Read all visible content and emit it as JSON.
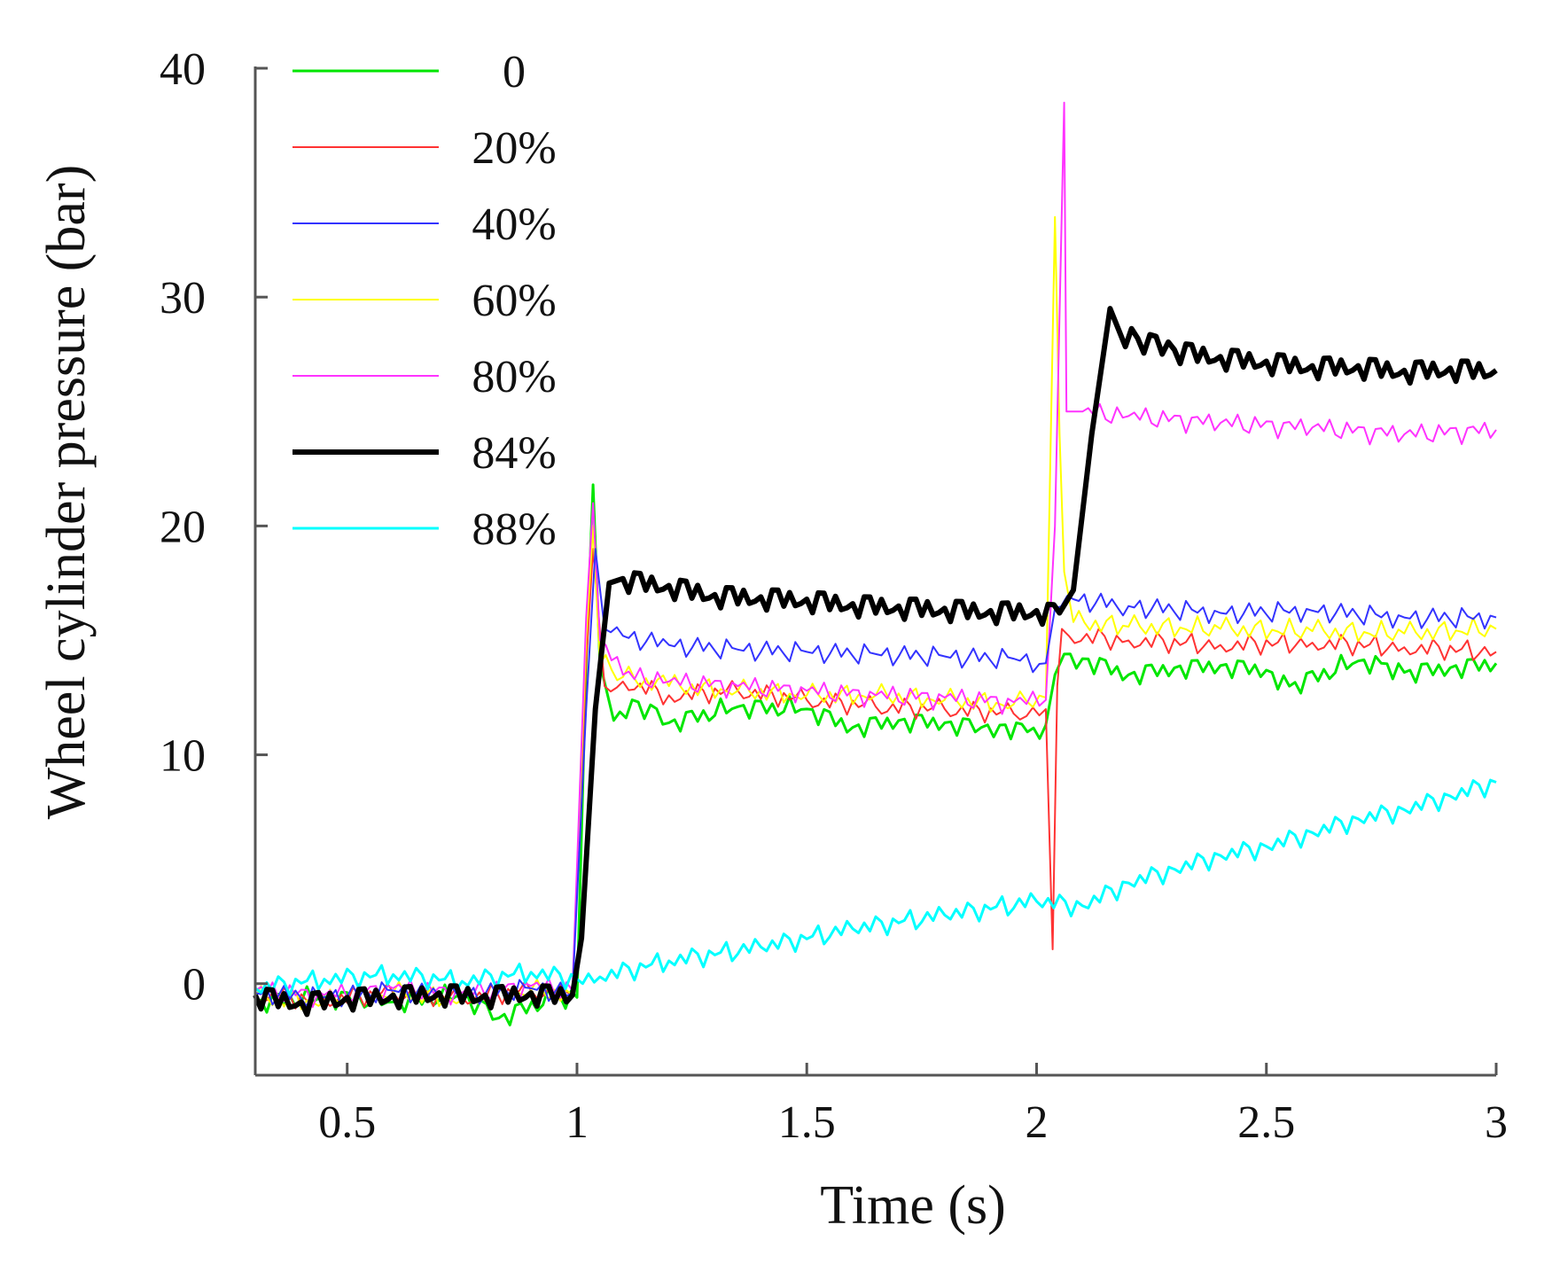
{
  "chart_data": {
    "type": "line",
    "title": "",
    "xlabel": "Time (s)",
    "ylabel": "Wheel cylinder pressure (bar)",
    "xlim": [
      0.3,
      3.0
    ],
    "ylim": [
      -4,
      40
    ],
    "xticks": [
      0.5,
      1,
      1.5,
      2,
      2.5,
      3
    ],
    "xtick_labels": [
      "0.5",
      "1",
      "1.5",
      "2",
      "2.5",
      "3"
    ],
    "yticks": [
      0,
      10,
      20,
      30,
      40
    ],
    "ytick_labels": [
      "0",
      "10",
      "20",
      "30",
      "40"
    ],
    "grid": false,
    "legend_position": "top-left",
    "series": [
      {
        "name": "0",
        "color": "#00e600",
        "stroke": 3,
        "x": [
          0.3,
          0.45,
          0.6,
          0.75,
          0.83,
          0.95,
          1.0,
          1.02,
          1.035,
          1.05,
          1.08,
          1.12,
          1.2,
          1.35,
          1.5,
          1.6,
          1.7,
          1.8,
          1.88,
          1.92,
          1.98,
          2.02,
          2.04,
          2.06,
          2.1,
          2.2,
          2.3,
          2.4,
          2.5,
          2.55,
          2.7,
          2.75,
          2.8,
          2.9,
          3.0
        ],
        "y": [
          -0.8,
          -0.6,
          -0.8,
          -0.5,
          -1.5,
          -0.6,
          -0.6,
          14,
          21.8,
          14,
          11.5,
          12.4,
          11.4,
          12.1,
          12.0,
          11.2,
          11.5,
          11.4,
          11.2,
          11.3,
          11.0,
          11.3,
          13.5,
          14.4,
          14.2,
          13.5,
          13.8,
          13.9,
          13.7,
          13.0,
          14.1,
          14.0,
          13.6,
          13.8,
          14.0
        ]
      },
      {
        "name": "20%",
        "color": "#ff3333",
        "stroke": 2,
        "x": [
          0.3,
          0.45,
          0.6,
          0.75,
          0.9,
          0.99,
          1.02,
          1.035,
          1.06,
          1.1,
          1.2,
          1.35,
          1.5,
          1.65,
          1.8,
          1.95,
          2.02,
          2.035,
          2.045,
          2.055,
          2.07,
          2.2,
          2.4,
          2.6,
          2.8,
          3.0
        ],
        "y": [
          -0.5,
          -0.7,
          -0.4,
          -0.6,
          -0.3,
          -0.5,
          14,
          19,
          13,
          13.2,
          12.6,
          12.8,
          12.4,
          12.1,
          12.0,
          11.8,
          12.0,
          1.5,
          13,
          15.5,
          15.2,
          15.0,
          14.8,
          14.9,
          14.7,
          14.5
        ]
      },
      {
        "name": "40%",
        "color": "#3333ff",
        "stroke": 2,
        "x": [
          0.3,
          0.45,
          0.6,
          0.75,
          0.9,
          0.99,
          1.02,
          1.04,
          1.06,
          1.1,
          1.2,
          1.35,
          1.5,
          1.65,
          1.8,
          1.95,
          2.02,
          2.04,
          2.08,
          2.2,
          2.4,
          2.6,
          2.8,
          3.0
        ],
        "y": [
          -0.4,
          -0.6,
          -0.3,
          -0.5,
          -0.2,
          -0.4,
          12,
          19,
          15.5,
          15.2,
          14.8,
          14.6,
          14.5,
          14.4,
          14.3,
          14.2,
          14.0,
          16.4,
          16.8,
          16.5,
          16.2,
          16.3,
          16.0,
          16.0
        ]
      },
      {
        "name": "60%",
        "color": "#ffff00",
        "stroke": 2,
        "x": [
          0.3,
          0.45,
          0.6,
          0.75,
          0.9,
          0.99,
          1.02,
          1.035,
          1.05,
          1.1,
          1.2,
          1.35,
          1.5,
          1.65,
          1.8,
          1.95,
          2.02,
          2.04,
          2.05,
          2.06,
          2.08,
          2.2,
          2.4,
          2.6,
          2.8,
          3.0
        ],
        "y": [
          -0.6,
          -0.8,
          -0.4,
          -0.7,
          -0.3,
          -0.5,
          15,
          20,
          14,
          13.4,
          13.0,
          12.8,
          12.6,
          12.6,
          12.4,
          12.2,
          12.5,
          33.5,
          24,
          18,
          15.8,
          15.6,
          15.5,
          15.4,
          15.3,
          15.5
        ]
      },
      {
        "name": "80%",
        "color": "#ff33ff",
        "stroke": 2,
        "x": [
          0.3,
          0.45,
          0.6,
          0.75,
          0.9,
          0.99,
          1.02,
          1.035,
          1.05,
          1.1,
          1.2,
          1.35,
          1.5,
          1.65,
          1.8,
          1.95,
          2.02,
          2.04,
          2.06,
          2.065,
          2.1,
          2.2,
          2.4,
          2.6,
          2.8,
          3.0
        ],
        "y": [
          -0.3,
          -0.5,
          -0.2,
          -0.4,
          -0.1,
          -0.3,
          16,
          21,
          15,
          13.5,
          13.2,
          13.0,
          12.8,
          12.6,
          12.5,
          12.3,
          12.4,
          20,
          38.5,
          25,
          25,
          24.8,
          24.5,
          24.3,
          24.0,
          24.2
        ]
      },
      {
        "name": "84%",
        "color": "#000000",
        "stroke": 6,
        "x": [
          0.3,
          0.4,
          0.5,
          0.6,
          0.7,
          0.8,
          0.9,
          0.99,
          1.01,
          1.04,
          1.07,
          1.1,
          1.2,
          1.3,
          1.4,
          1.5,
          1.6,
          1.7,
          1.8,
          1.9,
          2.0,
          2.05,
          2.08,
          2.12,
          2.16,
          2.18,
          2.22,
          2.3,
          2.4,
          2.5,
          2.6,
          2.7,
          2.8,
          2.9,
          3.0
        ],
        "y": [
          -0.5,
          -0.8,
          -0.6,
          -0.5,
          -0.4,
          -0.5,
          -0.4,
          -0.5,
          2,
          12,
          17.5,
          17.7,
          17.4,
          17.0,
          16.9,
          16.8,
          16.6,
          16.5,
          16.4,
          16.3,
          16.3,
          16.2,
          17.2,
          24,
          29.5,
          28.5,
          28.2,
          27.7,
          27.4,
          27.2,
          27.0,
          27.0,
          26.8,
          26.9,
          26.8
        ]
      },
      {
        "name": "88%",
        "color": "#00ffff",
        "stroke": 3,
        "x": [
          0.3,
          0.45,
          0.6,
          0.75,
          0.9,
          1.0,
          1.05,
          1.2,
          1.4,
          1.6,
          1.8,
          2.0,
          2.1,
          2.2,
          2.3,
          2.4,
          2.5,
          2.6,
          2.7,
          2.8,
          2.9,
          3.0
        ],
        "y": [
          -0.2,
          0.2,
          0.4,
          0.1,
          0.5,
          0.2,
          0.3,
          1.0,
          1.6,
          2.4,
          3.0,
          3.6,
          3.4,
          4.4,
          5.0,
          5.6,
          6.0,
          6.6,
          7.2,
          7.6,
          8.2,
          8.8
        ]
      }
    ]
  }
}
